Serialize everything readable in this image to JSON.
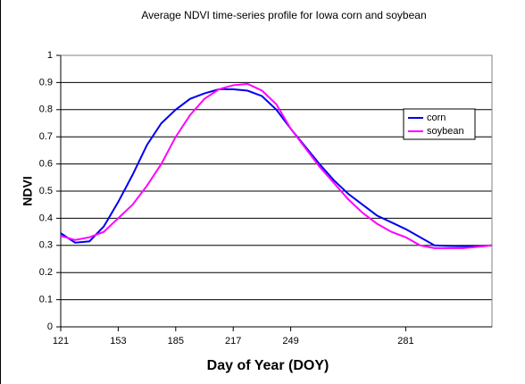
{
  "chart_data": {
    "type": "line",
    "title": "Average NDVI time-series profile for Iowa corn and soybean",
    "x_label": "Day of Year (DOY)",
    "y_label": "NDVI",
    "categories": [
      "121",
      null,
      null,
      null,
      "153",
      null,
      null,
      null,
      "185",
      null,
      null,
      null,
      "217",
      null,
      null,
      null,
      "249",
      null,
      null,
      null,
      null,
      null,
      null,
      null,
      "281",
      null,
      null,
      null,
      null,
      null,
      null
    ],
    "series": [
      {
        "name": "corn",
        "color": "#0000ee",
        "values": [
          0.345,
          0.31,
          0.315,
          0.37,
          0.46,
          0.56,
          0.67,
          0.75,
          0.8,
          0.84,
          0.86,
          0.875,
          0.875,
          0.87,
          0.85,
          0.8,
          0.73,
          0.665,
          0.6,
          0.54,
          0.49,
          0.45,
          0.41,
          0.385,
          0.36,
          0.33,
          0.3,
          0.298,
          0.297,
          0.297,
          0.3
        ]
      },
      {
        "name": "soybean",
        "color": "#ff00ff",
        "values": [
          0.335,
          0.32,
          0.33,
          0.35,
          0.4,
          0.45,
          0.52,
          0.6,
          0.7,
          0.78,
          0.84,
          0.875,
          0.89,
          0.895,
          0.87,
          0.82,
          0.73,
          0.66,
          0.59,
          0.53,
          0.47,
          0.42,
          0.38,
          0.35,
          0.33,
          0.3,
          0.29,
          0.29,
          0.29,
          0.295,
          0.3
        ]
      }
    ],
    "ylim": [
      0,
      1
    ],
    "yticks": [
      0,
      0.1,
      0.2,
      0.3,
      0.4,
      0.5,
      0.6,
      0.7,
      0.8,
      0.9,
      1
    ],
    "grid": true,
    "legend": "right"
  }
}
